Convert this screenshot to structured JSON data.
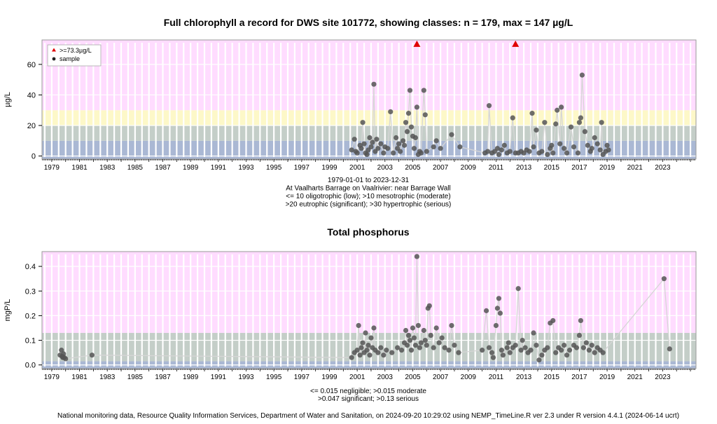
{
  "footer": "National monitoring data, Resource Quality Information Services, Department of Water and Sanitation, on 2024-09-20 10:29:02 using NEMP_TimeLine.R ver 2.3 under R version 4.4.1 (2024-06-14 ucrt)",
  "chart_data": [
    {
      "type": "scatter",
      "title": "Full chlorophyll a record for DWS site 101772, showing classes: n = 179, max = 147 µg/L",
      "ylabel": "µg/L",
      "xlim": [
        1978.3,
        2025.4
      ],
      "ylim": [
        -2,
        76
      ],
      "yticks": [
        0,
        20,
        40,
        60
      ],
      "xticks": [
        1979,
        1981,
        1983,
        1985,
        1987,
        1989,
        1991,
        1993,
        1995,
        1997,
        1999,
        2001,
        2003,
        2005,
        2007,
        2009,
        2011,
        2013,
        2015,
        2017,
        2019,
        2021,
        2023
      ],
      "bands": [
        {
          "from": -2,
          "to": 10,
          "color": "#aab8d4"
        },
        {
          "from": 10,
          "to": 20,
          "color": "#c4cec8"
        },
        {
          "from": 20,
          "to": 30,
          "color": "#fdf8c8"
        },
        {
          "from": 30,
          "to": 76,
          "color": "#ffdcff"
        }
      ],
      "caption": [
        "1979-01-01 to 2023-12-31",
        "At Vaalharts Barrage on Vaalrivier: near Barrage Wall",
        "<= 10 oligotrophic (low); >10 mesotrophic (moderate)",
        ">20 eutrophic (significant); >30 hypertrophic (serious)"
      ],
      "legend": {
        "position": "top-left",
        "items": [
          ">=73.3µg/L",
          "sample"
        ]
      },
      "marker_color": "#555555",
      "exceed_color": "#e00000",
      "exceed_points": [
        [
          2005.3,
          73.3
        ],
        [
          2012.4,
          73.3
        ]
      ],
      "points": [
        [
          2000.6,
          4
        ],
        [
          2000.8,
          11
        ],
        [
          2000.9,
          3
        ],
        [
          2001.0,
          2
        ],
        [
          2001.2,
          7
        ],
        [
          2001.3,
          5
        ],
        [
          2001.4,
          22
        ],
        [
          2001.5,
          8
        ],
        [
          2001.6,
          2
        ],
        [
          2001.7,
          1
        ],
        [
          2001.8,
          4
        ],
        [
          2001.9,
          12
        ],
        [
          2002.0,
          6
        ],
        [
          2002.1,
          9
        ],
        [
          2002.2,
          47
        ],
        [
          2002.3,
          3
        ],
        [
          2002.4,
          11
        ],
        [
          2002.5,
          5
        ],
        [
          2002.7,
          8
        ],
        [
          2002.9,
          2
        ],
        [
          2003.0,
          6
        ],
        [
          2003.2,
          5
        ],
        [
          2003.4,
          29
        ],
        [
          2003.6,
          2
        ],
        [
          2003.8,
          12
        ],
        [
          2003.9,
          5
        ],
        [
          2004.0,
          8
        ],
        [
          2004.1,
          3
        ],
        [
          2004.3,
          10
        ],
        [
          2004.4,
          7
        ],
        [
          2004.5,
          22
        ],
        [
          2004.6,
          16
        ],
        [
          2004.7,
          28
        ],
        [
          2004.8,
          43
        ],
        [
          2004.9,
          19
        ],
        [
          2005.0,
          13
        ],
        [
          2005.1,
          5
        ],
        [
          2005.2,
          12
        ],
        [
          2005.3,
          32
        ],
        [
          2005.4,
          1
        ],
        [
          2005.5,
          3
        ],
        [
          2005.6,
          2
        ],
        [
          2005.8,
          43
        ],
        [
          2005.9,
          27
        ],
        [
          2006.0,
          3
        ],
        [
          2006.5,
          6
        ],
        [
          2006.7,
          10
        ],
        [
          2007.0,
          5
        ],
        [
          2007.8,
          14
        ],
        [
          2008.4,
          6
        ],
        [
          2010.2,
          2
        ],
        [
          2010.4,
          3
        ],
        [
          2010.5,
          33
        ],
        [
          2010.7,
          2
        ],
        [
          2010.9,
          3
        ],
        [
          2011.1,
          5
        ],
        [
          2011.2,
          1
        ],
        [
          2011.4,
          4
        ],
        [
          2011.6,
          7
        ],
        [
          2011.8,
          2
        ],
        [
          2012.0,
          3
        ],
        [
          2012.2,
          25
        ],
        [
          2012.4,
          2
        ],
        [
          2012.6,
          2
        ],
        [
          2012.8,
          3
        ],
        [
          2013.0,
          2
        ],
        [
          2013.2,
          4
        ],
        [
          2013.4,
          3
        ],
        [
          2013.6,
          28
        ],
        [
          2013.7,
          6
        ],
        [
          2013.9,
          17
        ],
        [
          2014.1,
          2
        ],
        [
          2014.3,
          3
        ],
        [
          2014.5,
          22
        ],
        [
          2014.7,
          1
        ],
        [
          2014.9,
          5
        ],
        [
          2015.0,
          7
        ],
        [
          2015.1,
          2
        ],
        [
          2015.3,
          21
        ],
        [
          2015.4,
          30
        ],
        [
          2015.6,
          8
        ],
        [
          2015.7,
          32
        ],
        [
          2015.9,
          5
        ],
        [
          2016.1,
          2
        ],
        [
          2016.4,
          19
        ],
        [
          2016.6,
          6
        ],
        [
          2016.9,
          2
        ],
        [
          2017.0,
          22
        ],
        [
          2017.1,
          25
        ],
        [
          2017.2,
          53
        ],
        [
          2017.4,
          16
        ],
        [
          2017.6,
          7
        ],
        [
          2017.8,
          3
        ],
        [
          2017.9,
          5
        ],
        [
          2018.1,
          12
        ],
        [
          2018.3,
          8
        ],
        [
          2018.5,
          4
        ],
        [
          2018.6,
          22
        ],
        [
          2018.7,
          1
        ],
        [
          2018.9,
          3
        ],
        [
          2019.0,
          7
        ],
        [
          2019.1,
          4
        ]
      ]
    },
    {
      "type": "scatter",
      "title": "Total phosphorus",
      "ylabel": "mgP/L",
      "xlim": [
        1978.3,
        2025.4
      ],
      "ylim": [
        -0.015,
        0.46
      ],
      "yticks": [
        0.0,
        0.1,
        0.2,
        0.3,
        0.4
      ],
      "xticks": [
        1979,
        1981,
        1983,
        1985,
        1987,
        1989,
        1991,
        1993,
        1995,
        1997,
        1999,
        2001,
        2003,
        2005,
        2007,
        2009,
        2011,
        2013,
        2015,
        2017,
        2019,
        2021,
        2023
      ],
      "bands": [
        {
          "from": -0.015,
          "to": 0.015,
          "color": "#aab8d4"
        },
        {
          "from": 0.015,
          "to": 0.13,
          "color": "#c4cec8"
        },
        {
          "from": 0.13,
          "to": 0.46,
          "color": "#ffdcff"
        }
      ],
      "caption": [
        "<= 0.015 negligible; >0.015 moderate",
        ">0.047 significant; >0.13 serious"
      ],
      "marker_color": "#555555",
      "points": [
        [
          1979.6,
          0.04
        ],
        [
          1979.7,
          0.06
        ],
        [
          1979.75,
          0.035
        ],
        [
          1979.8,
          0.03
        ],
        [
          1979.85,
          0.045
        ],
        [
          1979.9,
          0.03
        ],
        [
          1980.0,
          0.025
        ],
        [
          1981.9,
          0.04
        ],
        [
          2000.6,
          0.03
        ],
        [
          2000.8,
          0.05
        ],
        [
          2001.0,
          0.06
        ],
        [
          2001.1,
          0.16
        ],
        [
          2001.2,
          0.04
        ],
        [
          2001.3,
          0.07
        ],
        [
          2001.4,
          0.09
        ],
        [
          2001.5,
          0.05
        ],
        [
          2001.6,
          0.13
        ],
        [
          2001.7,
          0.06
        ],
        [
          2001.8,
          0.08
        ],
        [
          2001.9,
          0.04
        ],
        [
          2002.0,
          0.11
        ],
        [
          2002.1,
          0.07
        ],
        [
          2002.2,
          0.15
        ],
        [
          2002.3,
          0.06
        ],
        [
          2002.5,
          0.05
        ],
        [
          2002.7,
          0.07
        ],
        [
          2002.9,
          0.04
        ],
        [
          2003.1,
          0.06
        ],
        [
          2003.5,
          0.05
        ],
        [
          2003.9,
          0.07
        ],
        [
          2004.2,
          0.06
        ],
        [
          2004.4,
          0.09
        ],
        [
          2004.5,
          0.14
        ],
        [
          2004.6,
          0.08
        ],
        [
          2004.7,
          0.12
        ],
        [
          2004.8,
          0.1
        ],
        [
          2004.9,
          0.06
        ],
        [
          2005.0,
          0.15
        ],
        [
          2005.1,
          0.11
        ],
        [
          2005.2,
          0.08
        ],
        [
          2005.3,
          0.44
        ],
        [
          2005.4,
          0.16
        ],
        [
          2005.5,
          0.07
        ],
        [
          2005.6,
          0.09
        ],
        [
          2005.8,
          0.14
        ],
        [
          2005.9,
          0.1
        ],
        [
          2006.0,
          0.08
        ],
        [
          2006.1,
          0.23
        ],
        [
          2006.2,
          0.24
        ],
        [
          2006.3,
          0.12
        ],
        [
          2006.5,
          0.07
        ],
        [
          2006.7,
          0.15
        ],
        [
          2006.9,
          0.09
        ],
        [
          2007.1,
          0.11
        ],
        [
          2007.3,
          0.07
        ],
        [
          2007.6,
          0.06
        ],
        [
          2007.8,
          0.16
        ],
        [
          2008.0,
          0.08
        ],
        [
          2008.3,
          0.05
        ],
        [
          2010.0,
          0.06
        ],
        [
          2010.3,
          0.22
        ],
        [
          2010.5,
          0.07
        ],
        [
          2010.7,
          0.05
        ],
        [
          2010.8,
          0.03
        ],
        [
          2011.0,
          0.16
        ],
        [
          2011.1,
          0.23
        ],
        [
          2011.2,
          0.27
        ],
        [
          2011.3,
          0.21
        ],
        [
          2011.4,
          0.06
        ],
        [
          2011.5,
          0.04
        ],
        [
          2011.8,
          0.07
        ],
        [
          2011.9,
          0.09
        ],
        [
          2012.0,
          0.05
        ],
        [
          2012.2,
          0.07
        ],
        [
          2012.4,
          0.08
        ],
        [
          2012.6,
          0.31
        ],
        [
          2012.8,
          0.06
        ],
        [
          2012.9,
          0.1
        ],
        [
          2013.1,
          0.07
        ],
        [
          2013.3,
          0.05
        ],
        [
          2013.5,
          0.06
        ],
        [
          2013.7,
          0.13
        ],
        [
          2013.9,
          0.08
        ],
        [
          2014.1,
          0.02
        ],
        [
          2014.3,
          0.04
        ],
        [
          2014.5,
          0.06
        ],
        [
          2014.7,
          0.07
        ],
        [
          2014.9,
          0.17
        ],
        [
          2015.1,
          0.18
        ],
        [
          2015.3,
          0.05
        ],
        [
          2015.5,
          0.07
        ],
        [
          2015.7,
          0.06
        ],
        [
          2015.9,
          0.08
        ],
        [
          2016.1,
          0.04
        ],
        [
          2016.3,
          0.06
        ],
        [
          2016.6,
          0.08
        ],
        [
          2016.8,
          0.07
        ],
        [
          2017.0,
          0.12
        ],
        [
          2017.1,
          0.18
        ],
        [
          2017.3,
          0.07
        ],
        [
          2017.5,
          0.09
        ],
        [
          2017.7,
          0.06
        ],
        [
          2017.9,
          0.08
        ],
        [
          2018.1,
          0.05
        ],
        [
          2018.3,
          0.07
        ],
        [
          2018.5,
          0.06
        ],
        [
          2018.7,
          0.05
        ],
        [
          2023.1,
          0.35
        ],
        [
          2023.5,
          0.065
        ]
      ]
    }
  ]
}
